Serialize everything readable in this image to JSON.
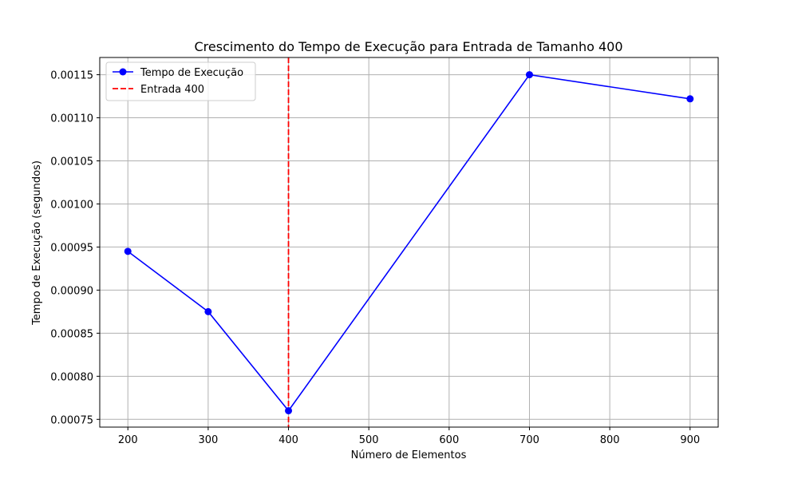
{
  "chart_data": {
    "type": "line",
    "title": "Crescimento do Tempo de Execução para Entrada de Tamanho 400",
    "xlabel": "Número de Elementos",
    "ylabel": "Tempo de Execução (segundos)",
    "xlim": [
      165,
      935
    ],
    "ylim": [
      0.000741,
      0.00117
    ],
    "xticks": [
      200,
      300,
      400,
      500,
      600,
      700,
      800,
      900
    ],
    "yticks": [
      0.00075,
      0.0008,
      0.00085,
      0.0009,
      0.00095,
      0.001,
      0.00105,
      0.0011,
      0.00115
    ],
    "xtick_labels": [
      "200",
      "300",
      "400",
      "500",
      "600",
      "700",
      "800",
      "900"
    ],
    "ytick_labels": [
      "0.00075",
      "0.00080",
      "0.00085",
      "0.00090",
      "0.00095",
      "0.00100",
      "0.00105",
      "0.00110",
      "0.00115"
    ],
    "grid": true,
    "legend_position": "top-left",
    "series": [
      {
        "name": "Tempo de Execução",
        "color": "#0000ff",
        "marker": "circle",
        "x": [
          200,
          300,
          400,
          700,
          900
        ],
        "y": [
          0.000945,
          0.000875,
          0.00076,
          0.00115,
          0.001122
        ]
      }
    ],
    "vlines": [
      {
        "name": "Entrada 400",
        "x": 400,
        "color": "#ff0000",
        "style": "dashed"
      }
    ]
  }
}
